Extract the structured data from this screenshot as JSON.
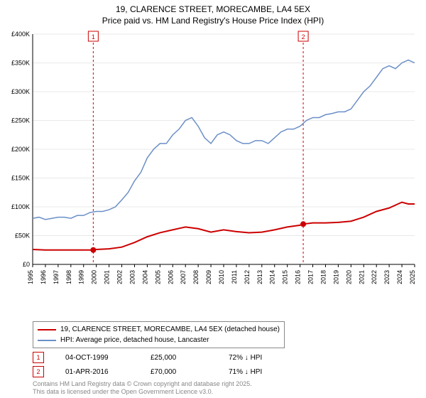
{
  "title_line1": "19, CLARENCE STREET, MORECAMBE, LA4 5EX",
  "title_line2": "Price paid vs. HM Land Registry's House Price Index (HPI)",
  "chart": {
    "type": "line",
    "background_color": "#ffffff",
    "grid_color": "#e8e8e8",
    "axis_color": "#000000",
    "x_years": [
      1995,
      1996,
      1997,
      1998,
      1999,
      2000,
      2001,
      2002,
      2003,
      2004,
      2005,
      2006,
      2007,
      2008,
      2009,
      2010,
      2011,
      2012,
      2013,
      2014,
      2015,
      2016,
      2017,
      2018,
      2019,
      2020,
      2021,
      2022,
      2023,
      2024,
      2025
    ],
    "ylim": [
      0,
      400000
    ],
    "ytick_step": 50000,
    "ytick_labels": [
      "£0",
      "£50K",
      "£100K",
      "£150K",
      "£200K",
      "£250K",
      "£300K",
      "£350K",
      "£400K"
    ],
    "tick_fontsize": 9,
    "series": [
      {
        "name": "HPI: Average price, detached house, Lancaster",
        "color": "#6b8fc7",
        "line_width": 1.5,
        "data": [
          [
            1995,
            80000
          ],
          [
            1995.5,
            82000
          ],
          [
            1996,
            78000
          ],
          [
            1996.5,
            80000
          ],
          [
            1997,
            82000
          ],
          [
            1997.5,
            82000
          ],
          [
            1998,
            80000
          ],
          [
            1998.5,
            85000
          ],
          [
            1999,
            85000
          ],
          [
            1999.5,
            90000
          ],
          [
            2000,
            92000
          ],
          [
            2000.5,
            92000
          ],
          [
            2001,
            95000
          ],
          [
            2001.5,
            100000
          ],
          [
            2002,
            112000
          ],
          [
            2002.5,
            125000
          ],
          [
            2003,
            145000
          ],
          [
            2003.5,
            160000
          ],
          [
            2004,
            185000
          ],
          [
            2004.5,
            200000
          ],
          [
            2005,
            210000
          ],
          [
            2005.5,
            210000
          ],
          [
            2006,
            225000
          ],
          [
            2006.5,
            235000
          ],
          [
            2007,
            250000
          ],
          [
            2007.5,
            255000
          ],
          [
            2008,
            240000
          ],
          [
            2008.5,
            220000
          ],
          [
            2009,
            210000
          ],
          [
            2009.5,
            225000
          ],
          [
            2010,
            230000
          ],
          [
            2010.5,
            225000
          ],
          [
            2011,
            215000
          ],
          [
            2011.5,
            210000
          ],
          [
            2012,
            210000
          ],
          [
            2012.5,
            215000
          ],
          [
            2013,
            215000
          ],
          [
            2013.5,
            210000
          ],
          [
            2014,
            220000
          ],
          [
            2014.5,
            230000
          ],
          [
            2015,
            235000
          ],
          [
            2015.5,
            235000
          ],
          [
            2016,
            240000
          ],
          [
            2016.5,
            250000
          ],
          [
            2017,
            255000
          ],
          [
            2017.5,
            255000
          ],
          [
            2018,
            260000
          ],
          [
            2018.5,
            262000
          ],
          [
            2019,
            265000
          ],
          [
            2019.5,
            265000
          ],
          [
            2020,
            270000
          ],
          [
            2020.5,
            285000
          ],
          [
            2021,
            300000
          ],
          [
            2021.5,
            310000
          ],
          [
            2022,
            325000
          ],
          [
            2022.5,
            340000
          ],
          [
            2023,
            345000
          ],
          [
            2023.5,
            340000
          ],
          [
            2024,
            350000
          ],
          [
            2024.5,
            355000
          ],
          [
            2025,
            350000
          ]
        ]
      },
      {
        "name": "19, CLARENCE STREET, MORECAMBE, LA4 5EX (detached house)",
        "color": "#cc0000",
        "line_width": 2,
        "data": [
          [
            1995,
            26000
          ],
          [
            1996,
            25000
          ],
          [
            1997,
            25000
          ],
          [
            1998,
            25000
          ],
          [
            1999,
            25000
          ],
          [
            1999.76,
            25000
          ],
          [
            2000,
            26000
          ],
          [
            2001,
            27000
          ],
          [
            2002,
            30000
          ],
          [
            2003,
            38000
          ],
          [
            2004,
            48000
          ],
          [
            2005,
            55000
          ],
          [
            2006,
            60000
          ],
          [
            2007,
            65000
          ],
          [
            2008,
            62000
          ],
          [
            2009,
            56000
          ],
          [
            2010,
            60000
          ],
          [
            2011,
            57000
          ],
          [
            2012,
            55000
          ],
          [
            2013,
            56000
          ],
          [
            2014,
            60000
          ],
          [
            2015,
            65000
          ],
          [
            2016,
            68000
          ],
          [
            2016.25,
            70000
          ],
          [
            2017,
            72000
          ],
          [
            2018,
            72000
          ],
          [
            2019,
            73000
          ],
          [
            2020,
            75000
          ],
          [
            2021,
            82000
          ],
          [
            2022,
            92000
          ],
          [
            2023,
            98000
          ],
          [
            2024,
            108000
          ],
          [
            2024.5,
            105000
          ],
          [
            2025,
            105000
          ]
        ]
      }
    ],
    "markers": [
      {
        "label": "1",
        "x": 1999.76,
        "y": 25000,
        "dot_color": "#cc0000",
        "box_color": "#cc0000",
        "box_top": true
      },
      {
        "label": "2",
        "x": 2016.25,
        "y": 70000,
        "dot_color": "#cc0000",
        "box_color": "#cc0000",
        "box_top": true
      }
    ],
    "marker_line_color": "#cc0000",
    "marker_line_dash": "3,3"
  },
  "legend": {
    "border_color": "#888888",
    "fontsize": 10,
    "items": [
      {
        "color": "#cc0000",
        "label": "19, CLARENCE STREET, MORECAMBE, LA4 5EX (detached house)"
      },
      {
        "color": "#6b8fc7",
        "label": "HPI: Average price, detached house, Lancaster"
      }
    ]
  },
  "transactions": [
    {
      "num": "1",
      "date": "04-OCT-1999",
      "price": "£25,000",
      "delta": "72% ↓ HPI"
    },
    {
      "num": "2",
      "date": "01-APR-2016",
      "price": "£70,000",
      "delta": "71% ↓ HPI"
    }
  ],
  "credit_line1": "Contains HM Land Registry data © Crown copyright and database right 2025.",
  "credit_line2": "This data is licensed under the Open Government Licence v3.0."
}
